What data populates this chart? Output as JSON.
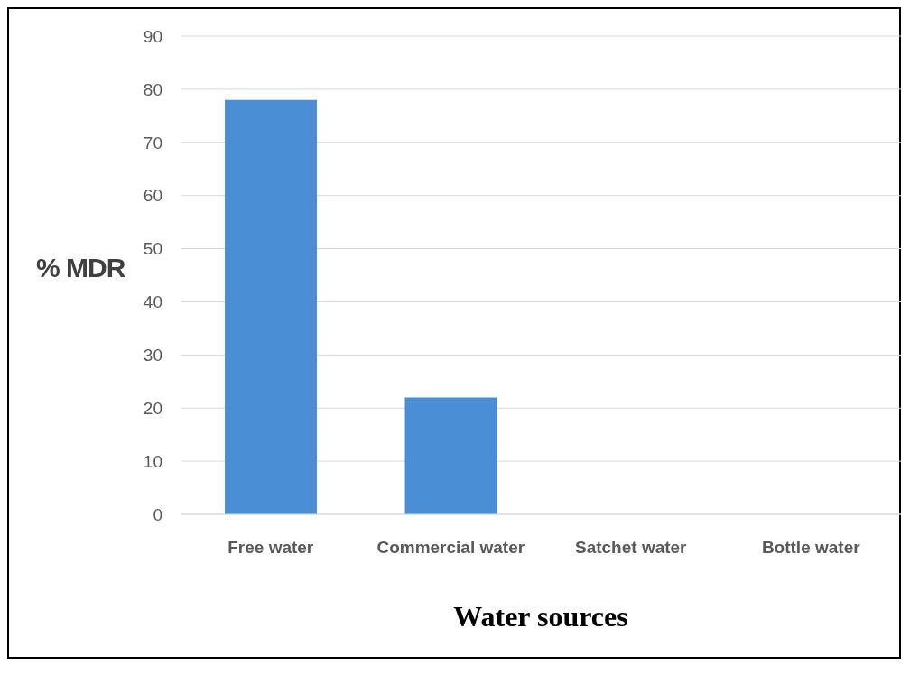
{
  "chart_data": {
    "type": "bar",
    "xlabel": "Water sources",
    "ylabel": "% MDR",
    "categories": [
      "Free water",
      "Commercial water",
      "Satchet water",
      "Bottle water"
    ],
    "values": [
      78,
      22,
      0,
      0
    ],
    "color": "#4a8fd6",
    "ylim": [
      0,
      90
    ],
    "yticks": [
      0,
      10,
      20,
      30,
      40,
      50,
      60,
      70,
      80,
      90
    ],
    "grid": "y"
  }
}
